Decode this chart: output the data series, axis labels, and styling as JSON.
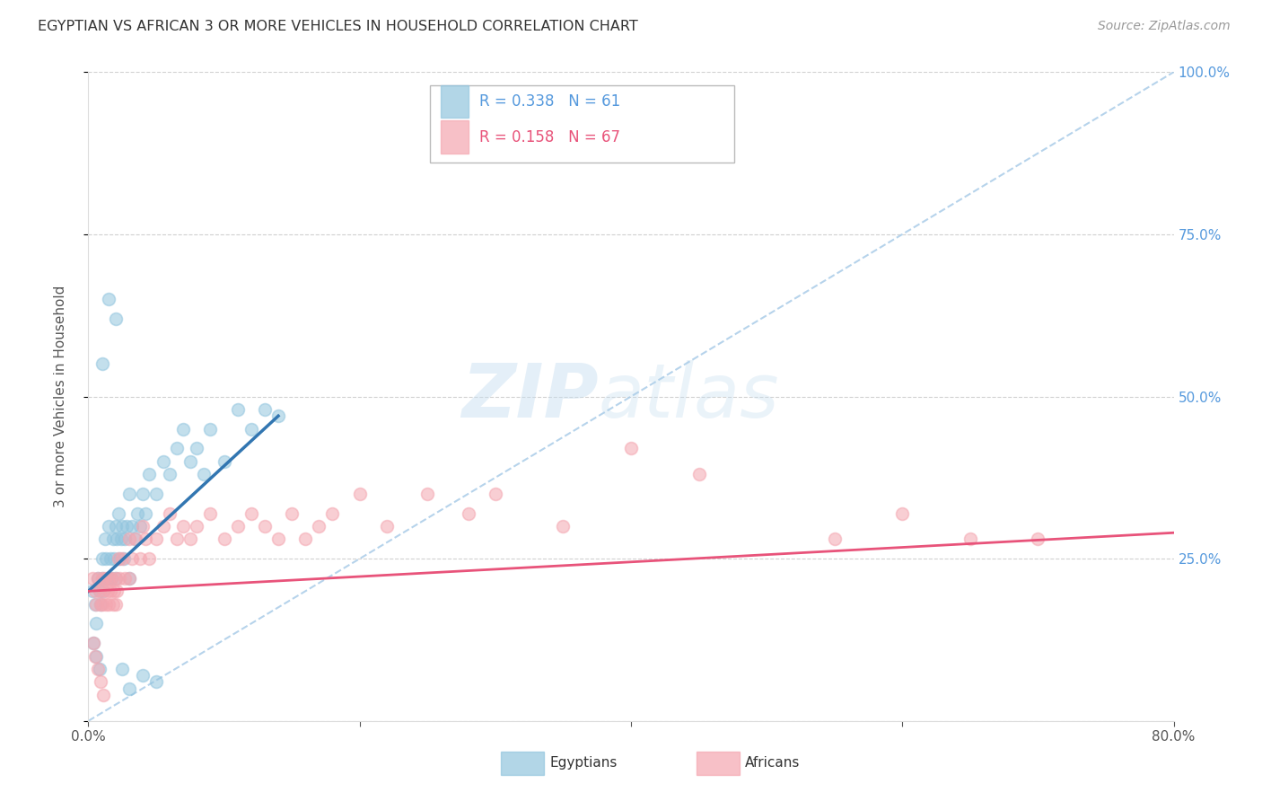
{
  "title": "EGYPTIAN VS AFRICAN 3 OR MORE VEHICLES IN HOUSEHOLD CORRELATION CHART",
  "source": "Source: ZipAtlas.com",
  "ylabel": "3 or more Vehicles in Household",
  "xmin": 0.0,
  "xmax": 80.0,
  "ymin": 0.0,
  "ymax": 100.0,
  "color_egyptian": "#92c5de",
  "color_african": "#f4a6b0",
  "color_reg_egyptian": "#3276b1",
  "color_reg_african": "#e8537a",
  "color_diag": "#aacce8",
  "legend_label_egyptian": "Egyptians",
  "legend_label_african": "Africans",
  "watermark_zip_color": "#c5ddf0",
  "watermark_atlas_color": "#c5ddf0",
  "background_color": "#ffffff",
  "grid_color": "#cccccc",
  "title_color": "#333333",
  "axis_label_color": "#555555",
  "tick_color_right": "#5599dd",
  "source_color": "#999999",
  "egyptian_x": [
    0.3,
    0.5,
    0.6,
    0.7,
    0.8,
    0.9,
    1.0,
    1.0,
    1.1,
    1.2,
    1.3,
    1.4,
    1.5,
    1.5,
    1.6,
    1.7,
    1.8,
    1.9,
    2.0,
    2.0,
    2.1,
    2.2,
    2.3,
    2.4,
    2.5,
    2.6,
    2.7,
    2.8,
    3.0,
    3.0,
    3.2,
    3.4,
    3.6,
    3.8,
    4.0,
    4.2,
    4.5,
    5.0,
    5.5,
    6.0,
    6.5,
    7.0,
    7.5,
    8.0,
    8.5,
    9.0,
    10.0,
    11.0,
    12.0,
    13.0,
    14.0,
    0.4,
    0.6,
    0.8,
    1.0,
    1.5,
    2.0,
    2.5,
    3.0,
    4.0,
    5.0
  ],
  "egyptian_y": [
    20.0,
    18.0,
    15.0,
    22.0,
    20.0,
    18.0,
    25.0,
    22.0,
    20.0,
    28.0,
    25.0,
    22.0,
    30.0,
    22.0,
    25.0,
    22.0,
    28.0,
    25.0,
    30.0,
    22.0,
    28.0,
    32.0,
    25.0,
    28.0,
    30.0,
    25.0,
    28.0,
    30.0,
    35.0,
    22.0,
    30.0,
    28.0,
    32.0,
    30.0,
    35.0,
    32.0,
    38.0,
    35.0,
    40.0,
    38.0,
    42.0,
    45.0,
    40.0,
    42.0,
    38.0,
    45.0,
    40.0,
    48.0,
    45.0,
    48.0,
    47.0,
    12.0,
    10.0,
    8.0,
    55.0,
    65.0,
    62.0,
    8.0,
    5.0,
    7.0,
    6.0
  ],
  "african_x": [
    0.3,
    0.5,
    0.6,
    0.7,
    0.8,
    0.9,
    1.0,
    1.0,
    1.1,
    1.2,
    1.3,
    1.4,
    1.5,
    1.5,
    1.6,
    1.7,
    1.8,
    1.9,
    2.0,
    2.0,
    2.1,
    2.2,
    2.3,
    2.5,
    2.7,
    3.0,
    3.0,
    3.2,
    3.5,
    3.8,
    4.0,
    4.2,
    4.5,
    5.0,
    5.5,
    6.0,
    6.5,
    7.0,
    7.5,
    8.0,
    9.0,
    10.0,
    11.0,
    12.0,
    13.0,
    14.0,
    15.0,
    16.0,
    17.0,
    18.0,
    20.0,
    22.0,
    25.0,
    28.0,
    30.0,
    35.0,
    40.0,
    45.0,
    55.0,
    60.0,
    65.0,
    70.0,
    0.4,
    0.5,
    0.7,
    0.9,
    1.1
  ],
  "african_y": [
    22.0,
    20.0,
    18.0,
    22.0,
    20.0,
    18.0,
    22.0,
    18.0,
    20.0,
    22.0,
    18.0,
    20.0,
    22.0,
    18.0,
    20.0,
    22.0,
    18.0,
    20.0,
    22.0,
    18.0,
    20.0,
    25.0,
    22.0,
    25.0,
    22.0,
    28.0,
    22.0,
    25.0,
    28.0,
    25.0,
    30.0,
    28.0,
    25.0,
    28.0,
    30.0,
    32.0,
    28.0,
    30.0,
    28.0,
    30.0,
    32.0,
    28.0,
    30.0,
    32.0,
    30.0,
    28.0,
    32.0,
    28.0,
    30.0,
    32.0,
    35.0,
    30.0,
    35.0,
    32.0,
    35.0,
    30.0,
    42.0,
    38.0,
    28.0,
    32.0,
    28.0,
    28.0,
    12.0,
    10.0,
    8.0,
    6.0,
    4.0
  ],
  "reg_egyptian_x0": 0.0,
  "reg_egyptian_x1": 14.0,
  "reg_egyptian_y0": 20.0,
  "reg_egyptian_y1": 47.0,
  "reg_african_x0": 0.0,
  "reg_african_x1": 80.0,
  "reg_african_y0": 20.0,
  "reg_african_y1": 29.0
}
